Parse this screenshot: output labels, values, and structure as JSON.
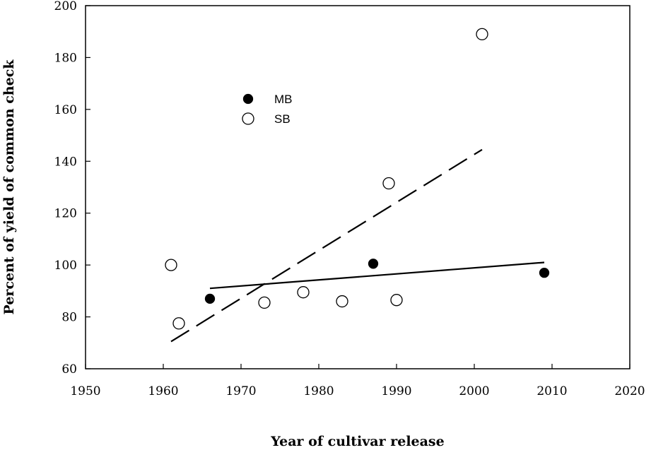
{
  "chart_data": {
    "type": "scatter",
    "title": "",
    "xlabel": "Year of cultivar release",
    "ylabel": "Percent of yield of common check",
    "xlim": [
      1950,
      2020
    ],
    "ylim": [
      60,
      200
    ],
    "xticks": [
      1950,
      1960,
      1970,
      1980,
      1990,
      2000,
      2010,
      2020
    ],
    "yticks": [
      60,
      80,
      100,
      120,
      140,
      160,
      180,
      200
    ],
    "grid": false,
    "legend_position": "upper-left",
    "series": [
      {
        "name": "MB",
        "marker": "filled-circle",
        "points": [
          {
            "x": 1966,
            "y": 87
          },
          {
            "x": 1987,
            "y": 100.5
          },
          {
            "x": 2009,
            "y": 97
          }
        ],
        "trendline": {
          "style": "solid",
          "x": [
            1966,
            2009
          ],
          "y": [
            91,
            101
          ]
        }
      },
      {
        "name": "SB",
        "marker": "open-circle",
        "points": [
          {
            "x": 1961,
            "y": 100
          },
          {
            "x": 1962,
            "y": 77.5
          },
          {
            "x": 1973,
            "y": 85.5
          },
          {
            "x": 1978,
            "y": 89.5
          },
          {
            "x": 1983,
            "y": 86
          },
          {
            "x": 1989,
            "y": 131.5
          },
          {
            "x": 1990,
            "y": 86.5
          },
          {
            "x": 2001,
            "y": 189
          }
        ],
        "trendline": {
          "style": "dashed",
          "x": [
            1961,
            2001
          ],
          "y": [
            70.5,
            144.5
          ]
        }
      }
    ]
  }
}
